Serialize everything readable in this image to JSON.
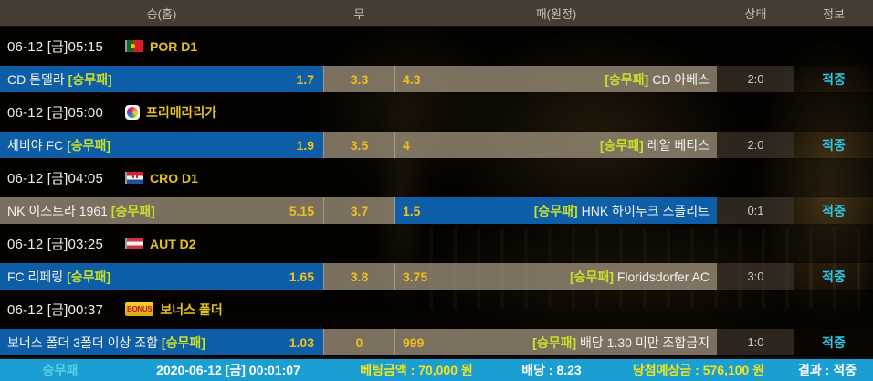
{
  "header": {
    "columns": [
      "승(홈)",
      "무",
      "패(원정)",
      "상태",
      "정보"
    ]
  },
  "matches": [
    {
      "datetime": "06-12 [금]05:15",
      "league": "POR D1",
      "league_icon": "portugal-flag",
      "home_team": "CD 톤델라",
      "home_tag": "[승무패]",
      "odds": {
        "home": "1.7",
        "draw": "3.3",
        "away": "4.3"
      },
      "away_tag": "[승무패]",
      "away_team": "CD 아베스",
      "selected": "home",
      "score": "2:0",
      "result": "적중"
    },
    {
      "datetime": "06-12 [금]05:00",
      "league": "프리메라리가",
      "league_icon": "laliga-logo",
      "home_team": "세비야 FC",
      "home_tag": "[승무패]",
      "odds": {
        "home": "1.9",
        "draw": "3.5",
        "away": "4"
      },
      "away_tag": "[승무패]",
      "away_team": "레알 베티스",
      "selected": "home",
      "score": "2:0",
      "result": "적중"
    },
    {
      "datetime": "06-12 [금]04:05",
      "league": "CRO D1",
      "league_icon": "croatia-flag",
      "home_team": "NK 이스트라 1961",
      "home_tag": "[승무패]",
      "odds": {
        "home": "5.15",
        "draw": "3.7",
        "away": "1.5"
      },
      "away_tag": "[승무패]",
      "away_team": "HNK 하이두크 스플리트",
      "selected": "away",
      "score": "0:1",
      "result": "적중"
    },
    {
      "datetime": "06-12 [금]03:25",
      "league": "AUT D2",
      "league_icon": "austria-flag",
      "home_team": "FC 리페링",
      "home_tag": "[승무패]",
      "odds": {
        "home": "1.65",
        "draw": "3.8",
        "away": "3.75"
      },
      "away_tag": "[승무패]",
      "away_team": "Floridsdorfer AC",
      "selected": "home",
      "score": "3:0",
      "result": "적중"
    },
    {
      "datetime": "06-12 [금]00:37",
      "league": "보너스 폴더",
      "league_icon": "bonus-badge",
      "league_icon_label": "BONUS",
      "home_team": "보너스 폴더 3폴더 이상 조합",
      "home_tag": "[승무패]",
      "odds": {
        "home": "1.03",
        "draw": "0",
        "away": "999"
      },
      "away_tag": "[승무패]",
      "away_team": "배당 1.30 미만 조합금지",
      "selected": "home",
      "score": "1:0",
      "result": "적중"
    }
  ],
  "footer": {
    "bet_type": "승무패",
    "bet_time": "2020-06-12 [금] 00:01:07",
    "bet_amount": "베팅금액 : 70,000 원",
    "total_odds": "배당 : 8.23",
    "expected_win": "당첨예상금 : 576,100 원",
    "result": "결과 : 적중"
  },
  "colors": {
    "selected_blue": "#0e61ac",
    "cell_tan": "#86796a",
    "status_bg": "#342d25",
    "odds_yellow": "#f0c11d",
    "tag_green": "#c8e02b",
    "league_gold": "#e2c31f",
    "hit_cyan": "#2ec9ea",
    "footer_blue": "#1b9ed2",
    "footer_yellow": "#f4e41c"
  }
}
